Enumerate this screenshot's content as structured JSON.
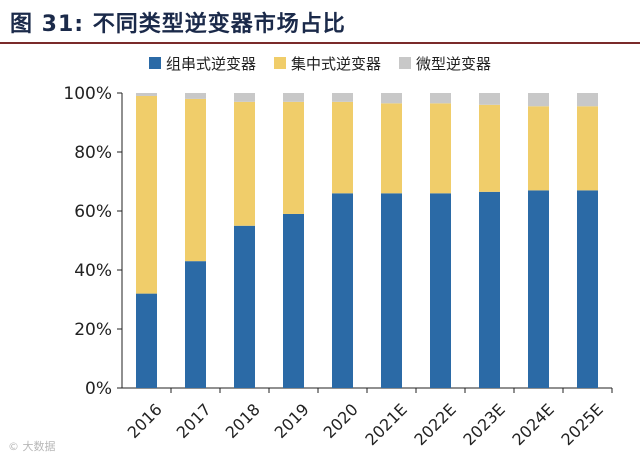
{
  "header": {
    "title": "图 31: 不同类型逆变器市场占比"
  },
  "colors": {
    "string": "#2b6aa6",
    "central": "#f0cd6a",
    "micro": "#c8c8c8",
    "axis": "#222222",
    "title_rule": "#7a2a2a"
  },
  "chart_data": {
    "type": "bar",
    "stacked": true,
    "title": "",
    "xlabel": "",
    "ylabel": "",
    "ylim": [
      0,
      100
    ],
    "y_ticks": [
      "0%",
      "20%",
      "40%",
      "60%",
      "80%",
      "100%"
    ],
    "y_tick_values": [
      0,
      20,
      40,
      60,
      80,
      100
    ],
    "grid": false,
    "legend_position": "top",
    "categories": [
      "2016",
      "2017",
      "2018",
      "2019",
      "2020",
      "2021E",
      "2022E",
      "2023E",
      "2024E",
      "2025E"
    ],
    "series": [
      {
        "name": "组串式逆变器",
        "color_key": "string",
        "values": [
          32,
          43,
          55,
          59,
          66,
          66,
          66,
          66.5,
          67,
          67
        ]
      },
      {
        "name": "集中式逆变器",
        "color_key": "central",
        "values": [
          67,
          55,
          42,
          38,
          31,
          30.5,
          30.5,
          29.5,
          28.5,
          28.5
        ]
      },
      {
        "name": "微型逆变器",
        "color_key": "micro",
        "values": [
          1,
          2,
          3,
          3,
          3,
          3.5,
          3.5,
          4,
          4.5,
          4.5
        ]
      }
    ]
  },
  "watermark": {
    "text": "© 大数据"
  }
}
